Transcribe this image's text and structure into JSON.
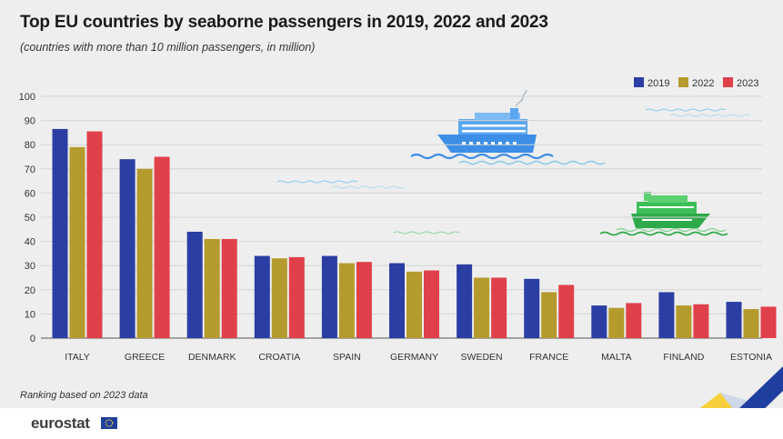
{
  "header": {
    "title": "Top EU countries by seaborne passengers in 2019, 2022 and 2023",
    "subtitle": "(countries with more than 10 million passengers, in million)"
  },
  "footnote": "Ranking based on 2023 data",
  "brand": "eurostat",
  "colors": {
    "2019": "#2b3ea3",
    "2022": "#b59a2d",
    "2023": "#e0404a",
    "gridline": "#d4d4d4",
    "background": "#eeeeee"
  },
  "decor_icons": [
    "cruise-ship-icon",
    "ferry-icon",
    "wave-icon"
  ],
  "chart_data": {
    "type": "bar",
    "title": "Top EU countries by seaborne passengers in 2019, 2022 and 2023",
    "subtitle": "(countries with more than 10 million passengers, in million)",
    "xlabel": "",
    "ylabel": "",
    "ylim": [
      0,
      100
    ],
    "yticks": [
      0,
      10,
      20,
      30,
      40,
      50,
      60,
      70,
      80,
      90,
      100
    ],
    "grid": true,
    "legend_position": "top-right",
    "categories": [
      "ITALY",
      "GREECE",
      "DENMARK",
      "CROATIA",
      "SPAIN",
      "GERMANY",
      "SWEDEN",
      "FRANCE",
      "MALTA",
      "FINLAND",
      "ESTONIA"
    ],
    "series": [
      {
        "name": "2019",
        "color": "#2b3ea3",
        "values": [
          86.5,
          74.0,
          44.0,
          34.0,
          34.0,
          31.0,
          30.5,
          24.5,
          13.5,
          19.0,
          15.0
        ]
      },
      {
        "name": "2022",
        "color": "#b59a2d",
        "values": [
          79.0,
          70.0,
          41.0,
          33.0,
          31.0,
          27.5,
          25.0,
          19.0,
          12.5,
          13.5,
          12.0
        ]
      },
      {
        "name": "2023",
        "color": "#e0404a",
        "values": [
          85.5,
          75.0,
          41.0,
          33.5,
          31.5,
          28.0,
          25.0,
          22.0,
          14.5,
          14.0,
          13.0
        ]
      }
    ]
  }
}
